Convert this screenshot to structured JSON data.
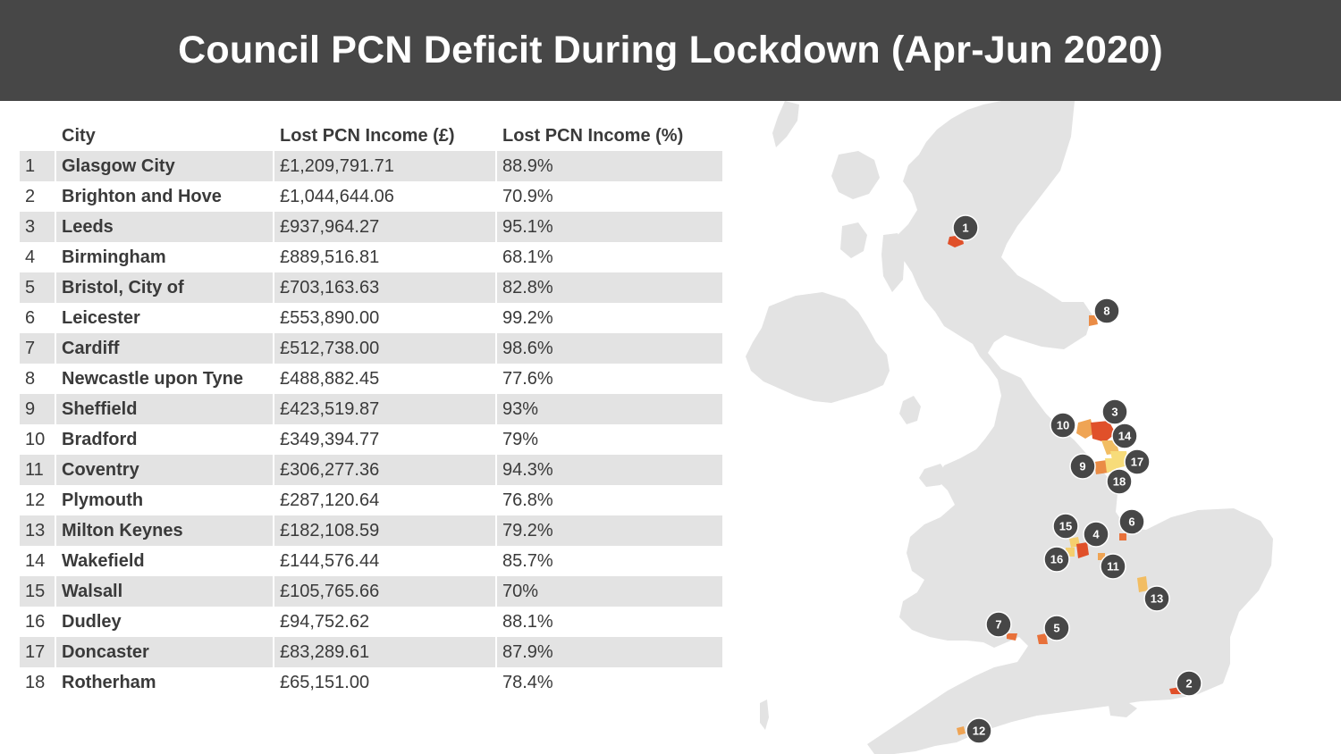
{
  "title": "Council PCN Deficit During Lockdown (Apr-Jun 2020)",
  "table": {
    "columns": [
      "",
      "City",
      "Lost PCN Income (£)",
      "Lost PCN Income (%)"
    ],
    "rows": [
      {
        "rank": "1",
        "city": "Glasgow City",
        "income": "£1,209,791.71",
        "percent": "88.9%"
      },
      {
        "rank": "2",
        "city": "Brighton and Hove",
        "income": "£1,044,644.06",
        "percent": "70.9%"
      },
      {
        "rank": "3",
        "city": "Leeds",
        "income": "£937,964.27",
        "percent": "95.1%"
      },
      {
        "rank": "4",
        "city": "Birmingham",
        "income": "£889,516.81",
        "percent": "68.1%"
      },
      {
        "rank": "5",
        "city": "Bristol, City of",
        "income": "£703,163.63",
        "percent": "82.8%"
      },
      {
        "rank": "6",
        "city": "Leicester",
        "income": "£553,890.00",
        "percent": "99.2%"
      },
      {
        "rank": "7",
        "city": "Cardiff",
        "income": "£512,738.00",
        "percent": "98.6%"
      },
      {
        "rank": "8",
        "city": "Newcastle upon Tyne",
        "income": "£488,882.45",
        "percent": "77.6%"
      },
      {
        "rank": "9",
        "city": "Sheffield",
        "income": "£423,519.87",
        "percent": "93%"
      },
      {
        "rank": "10",
        "city": "Bradford",
        "income": "£349,394.77",
        "percent": "79%"
      },
      {
        "rank": "11",
        "city": "Coventry",
        "income": "£306,277.36",
        "percent": "94.3%"
      },
      {
        "rank": "12",
        "city": "Plymouth",
        "income": "£287,120.64",
        "percent": "76.8%"
      },
      {
        "rank": "13",
        "city": "Milton Keynes",
        "income": "£182,108.59",
        "percent": "79.2%"
      },
      {
        "rank": "14",
        "city": "Wakefield",
        "income": "£144,576.44",
        "percent": "85.7%"
      },
      {
        "rank": "15",
        "city": "Walsall",
        "income": "£105,765.66",
        "percent": "70%"
      },
      {
        "rank": "16",
        "city": "Dudley",
        "income": "£94,752.62",
        "percent": "88.1%"
      },
      {
        "rank": "17",
        "city": "Doncaster",
        "income": "£83,289.61",
        "percent": "87.9%"
      },
      {
        "rank": "18",
        "city": "Rotherham",
        "income": "£65,151.00",
        "percent": "78.4%"
      }
    ]
  },
  "map": {
    "markers": [
      {
        "label": "1",
        "fill": "#e0502a"
      },
      {
        "label": "2",
        "fill": "#e0502a"
      },
      {
        "label": "3",
        "fill": "#e0502a"
      },
      {
        "label": "4",
        "fill": "#e0502a"
      },
      {
        "label": "5",
        "fill": "#e8713a"
      },
      {
        "label": "6",
        "fill": "#e8713a"
      },
      {
        "label": "7",
        "fill": "#e8713a"
      },
      {
        "label": "8",
        "fill": "#ea8c46"
      },
      {
        "label": "9",
        "fill": "#ea8c46"
      },
      {
        "label": "10",
        "fill": "#efa454"
      },
      {
        "label": "11",
        "fill": "#efa454"
      },
      {
        "label": "12",
        "fill": "#efa454"
      },
      {
        "label": "13",
        "fill": "#f2bd62"
      },
      {
        "label": "14",
        "fill": "#f2bd62"
      },
      {
        "label": "15",
        "fill": "#f5cf6e"
      },
      {
        "label": "16",
        "fill": "#f5cf6e"
      },
      {
        "label": "17",
        "fill": "#f7dc7a"
      },
      {
        "label": "18",
        "fill": "#f7dc7a"
      }
    ],
    "land_color": "#e3e3e3",
    "marker_color": "#474747"
  }
}
